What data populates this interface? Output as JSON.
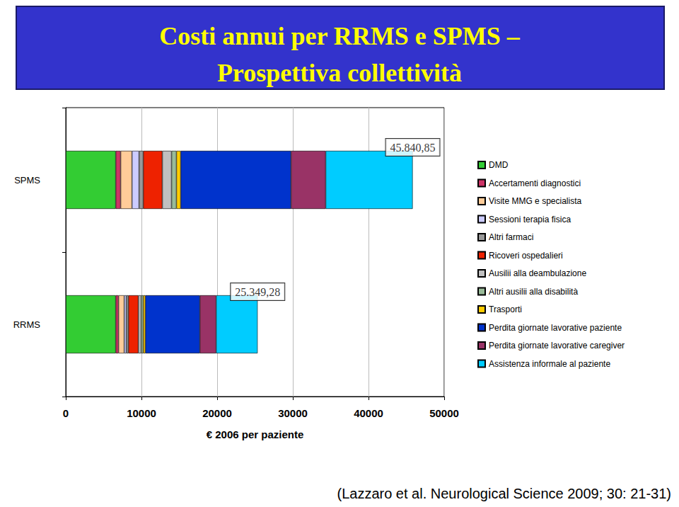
{
  "chart_data": {
    "type": "bar",
    "orientation": "horizontal",
    "stacked": true,
    "grid": true,
    "legend": "right",
    "title": "Costi annui per RRMS e SPMS –\nProspettiva collettività",
    "x_label": "€ 2006 per paziente",
    "caption": "(Lazzaro et al. Neurological Science 2009; 30: 21-31)",
    "categories": [
      "SPMS",
      "RRMS"
    ],
    "xlim": [
      0,
      50000
    ],
    "xticks": [
      0,
      10000,
      20000,
      30000,
      40000,
      50000
    ],
    "totals": [
      {
        "value": 45840.85,
        "label": "45.840,85"
      },
      {
        "value": 25349.28,
        "label": "25.349,28"
      }
    ],
    "series": [
      {
        "name": "DMD",
        "color": "#33cc33",
        "values": [
          6600,
          6600
        ]
      },
      {
        "name": "Accertamenti diagnostici",
        "color": "#cc3366",
        "values": [
          650,
          370
        ]
      },
      {
        "name": "Visite MMG e specialista",
        "color": "#ffcc99",
        "values": [
          1500,
          750
        ]
      },
      {
        "name": "Sessioni terapia fisica",
        "color": "#ccccff",
        "values": [
          930,
          280
        ]
      },
      {
        "name": "Altri farmaci",
        "color": "#999999",
        "values": [
          560,
          280
        ]
      },
      {
        "name": "Ricoveri ospedalieri",
        "color": "#ee2200",
        "values": [
          2520,
          1310
        ]
      },
      {
        "name": "Ausilii alla deambulazione",
        "color": "#c0c0c0",
        "values": [
          1215,
          370
        ]
      },
      {
        "name": "Altri ausilii alla disabilità",
        "color": "#99bb99",
        "values": [
          650,
          280
        ]
      },
      {
        "name": "Trasporti",
        "color": "#ffcc00",
        "values": [
          560,
          280
        ]
      },
      {
        "name": "Perdita giornate lavorative paziente",
        "color": "#0033cc",
        "values": [
          14580,
          7200
        ]
      },
      {
        "name": "Perdita giornate lavorative caregiver",
        "color": "#993366",
        "values": [
          4580,
          2150
        ]
      },
      {
        "name": "Assistenza informale al paziente",
        "color": "#00ccff",
        "values": [
          11495,
          5480
        ]
      }
    ]
  }
}
